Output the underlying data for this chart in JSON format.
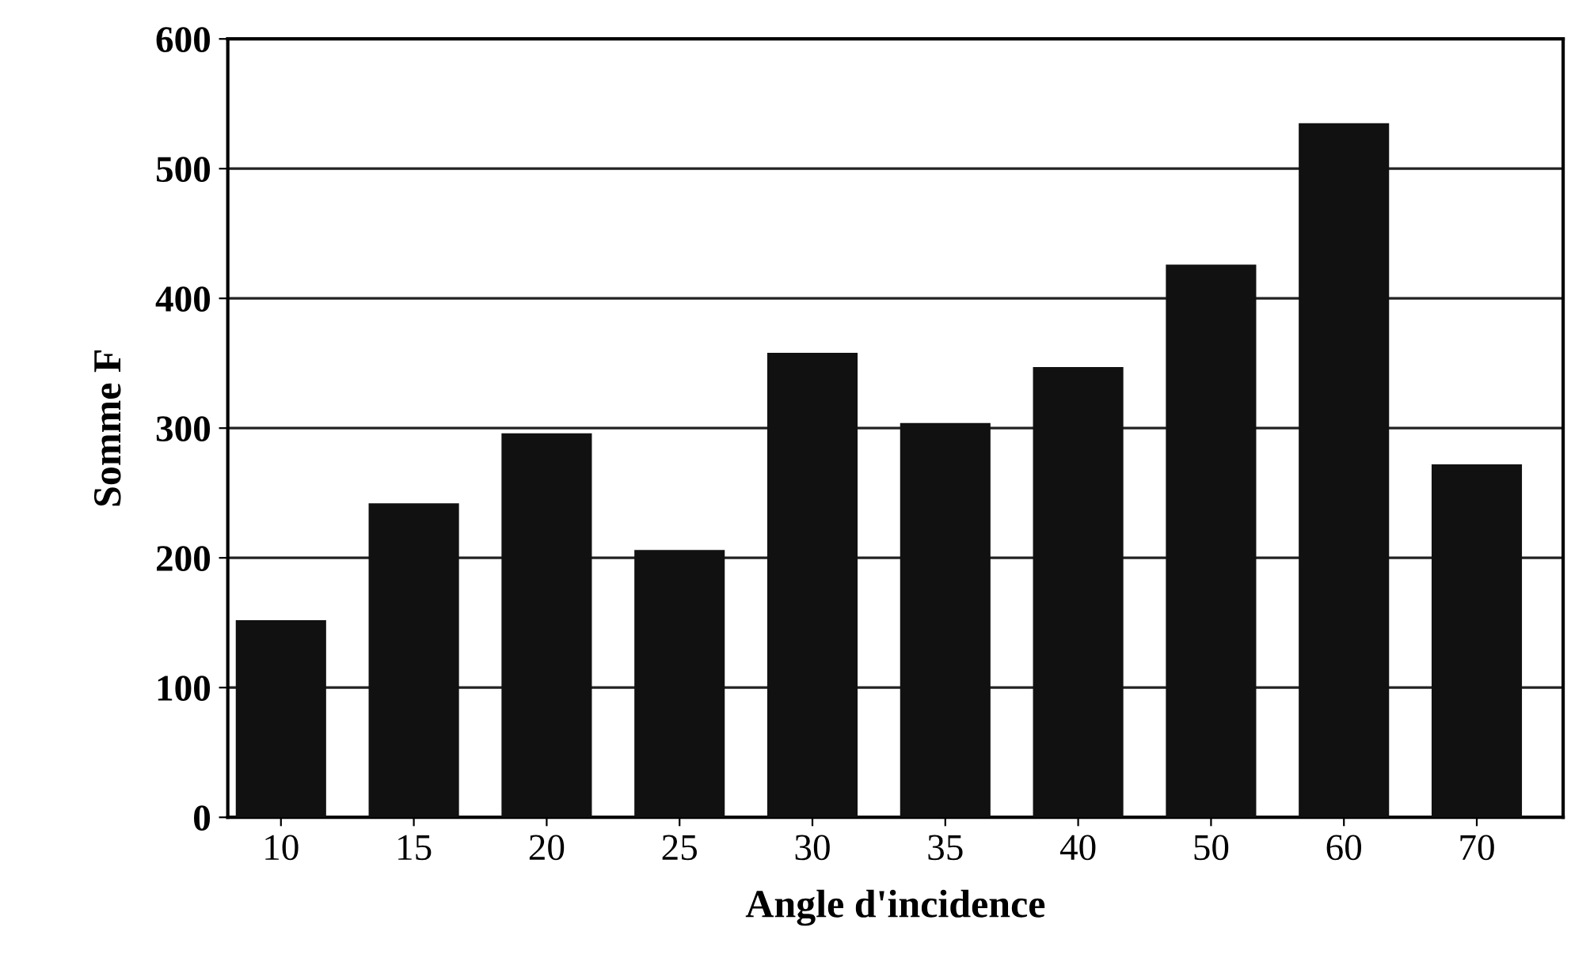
{
  "chart_data": {
    "type": "bar",
    "xlabel": "Angle d'incidence",
    "ylabel": "Somme F",
    "categories": [
      "10",
      "15",
      "20",
      "25",
      "30",
      "35",
      "40",
      "50",
      "60",
      "70"
    ],
    "values": [
      152,
      242,
      296,
      206,
      358,
      304,
      347,
      426,
      535,
      272
    ],
    "color": "#111111",
    "ylim": [
      0,
      600
    ],
    "yticks": [
      0,
      100,
      200,
      300,
      400,
      500,
      600
    ],
    "grid": "y",
    "legend": false
  }
}
